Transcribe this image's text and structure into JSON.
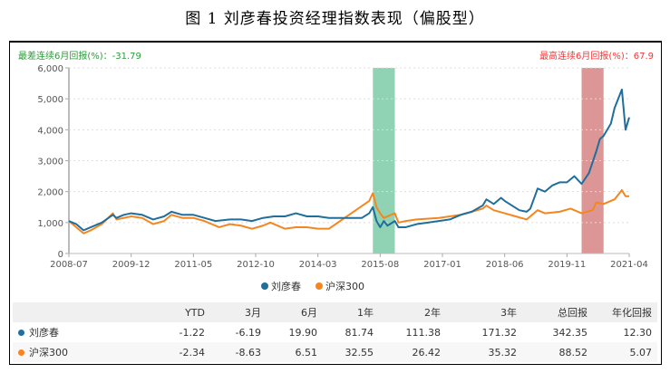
{
  "title": "图 1  刘彦春投资经理指数表现（偏股型）",
  "min_6m_label": "最差连续6月回报(%)：-31.79",
  "max_6m_label": "最高连续6月回报(%)：67.9",
  "chart_data": {
    "type": "line",
    "title": "",
    "ylim": [
      0,
      6000
    ],
    "yticks": [
      "0",
      "1,000",
      "2,000",
      "3,000",
      "4,000",
      "5,000",
      "6,000"
    ],
    "xticks": [
      "2008-07",
      "2009-12",
      "2011-05",
      "2012-10",
      "2014-03",
      "2015-08",
      "2017-01",
      "2018-06",
      "2019-11",
      "2021-04"
    ],
    "grid": "horizontal dotted",
    "legend": "bottom",
    "highlight_bands": [
      {
        "kind": "worst 6m",
        "from": "2015-06",
        "to": "2015-12",
        "color": "#8fd3b4"
      },
      {
        "kind": "best 6m",
        "from": "2020-03",
        "to": "2020-09",
        "color": "#dd9696"
      }
    ],
    "series": [
      {
        "name": "刘彦春",
        "color": "#1f6e9c",
        "points": [
          [
            "2008-07",
            1050
          ],
          [
            "2008-09",
            950
          ],
          [
            "2008-11",
            750
          ],
          [
            "2009-01",
            850
          ],
          [
            "2009-04",
            1000
          ],
          [
            "2009-07",
            1250
          ],
          [
            "2009-08",
            1150
          ],
          [
            "2009-10",
            1250
          ],
          [
            "2009-12",
            1300
          ],
          [
            "2010-03",
            1250
          ],
          [
            "2010-06",
            1100
          ],
          [
            "2010-09",
            1200
          ],
          [
            "2010-11",
            1350
          ],
          [
            "2011-02",
            1250
          ],
          [
            "2011-05",
            1250
          ],
          [
            "2011-08",
            1150
          ],
          [
            "2011-11",
            1050
          ],
          [
            "2012-03",
            1100
          ],
          [
            "2012-06",
            1100
          ],
          [
            "2012-09",
            1050
          ],
          [
            "2012-12",
            1150
          ],
          [
            "2013-03",
            1200
          ],
          [
            "2013-06",
            1200
          ],
          [
            "2013-09",
            1300
          ],
          [
            "2013-12",
            1200
          ],
          [
            "2014-03",
            1200
          ],
          [
            "2014-06",
            1150
          ],
          [
            "2015-03",
            1150
          ],
          [
            "2015-05",
            1300
          ],
          [
            "2015-06",
            1500
          ],
          [
            "2015-07",
            1050
          ],
          [
            "2015-08",
            850
          ],
          [
            "2015-09",
            1050
          ],
          [
            "2015-10",
            900
          ],
          [
            "2015-12",
            1050
          ],
          [
            "2016-01",
            850
          ],
          [
            "2016-03",
            850
          ],
          [
            "2016-06",
            950
          ],
          [
            "2016-09",
            1000
          ],
          [
            "2016-12",
            1050
          ],
          [
            "2017-03",
            1100
          ],
          [
            "2017-06",
            1250
          ],
          [
            "2017-09",
            1350
          ],
          [
            "2017-12",
            1550
          ],
          [
            "2018-01",
            1750
          ],
          [
            "2018-03",
            1600
          ],
          [
            "2018-05",
            1800
          ],
          [
            "2018-06",
            1700
          ],
          [
            "2018-08",
            1550
          ],
          [
            "2018-10",
            1400
          ],
          [
            "2018-12",
            1350
          ],
          [
            "2019-01",
            1450
          ],
          [
            "2019-03",
            2100
          ],
          [
            "2019-05",
            2000
          ],
          [
            "2019-07",
            2200
          ],
          [
            "2019-09",
            2300
          ],
          [
            "2019-11",
            2300
          ],
          [
            "2020-01",
            2500
          ],
          [
            "2020-03",
            2250
          ],
          [
            "2020-05",
            2600
          ],
          [
            "2020-07",
            3300
          ],
          [
            "2020-08",
            3700
          ],
          [
            "2020-09",
            3800
          ],
          [
            "2020-11",
            4200
          ],
          [
            "2020-12",
            4700
          ],
          [
            "2021-02",
            5300
          ],
          [
            "2021-03",
            4000
          ],
          [
            "2021-04",
            4400
          ]
        ]
      },
      {
        "name": "沪深300",
        "color": "#f5861f",
        "points": [
          [
            "2008-07",
            1050
          ],
          [
            "2008-11",
            650
          ],
          [
            "2009-01",
            750
          ],
          [
            "2009-04",
            950
          ],
          [
            "2009-07",
            1300
          ],
          [
            "2009-08",
            1100
          ],
          [
            "2009-12",
            1200
          ],
          [
            "2010-03",
            1150
          ],
          [
            "2010-06",
            950
          ],
          [
            "2010-09",
            1050
          ],
          [
            "2010-11",
            1250
          ],
          [
            "2011-02",
            1150
          ],
          [
            "2011-05",
            1150
          ],
          [
            "2011-08",
            1050
          ],
          [
            "2011-12",
            850
          ],
          [
            "2012-03",
            950
          ],
          [
            "2012-06",
            900
          ],
          [
            "2012-09",
            800
          ],
          [
            "2012-12",
            900
          ],
          [
            "2013-02",
            1000
          ],
          [
            "2013-06",
            800
          ],
          [
            "2013-09",
            850
          ],
          [
            "2013-12",
            850
          ],
          [
            "2014-03",
            800
          ],
          [
            "2014-06",
            800
          ],
          [
            "2015-05",
            1700
          ],
          [
            "2015-06",
            1950
          ],
          [
            "2015-07",
            1500
          ],
          [
            "2015-08",
            1300
          ],
          [
            "2015-09",
            1150
          ],
          [
            "2015-12",
            1300
          ],
          [
            "2016-01",
            1000
          ],
          [
            "2016-03",
            1050
          ],
          [
            "2016-06",
            1100
          ],
          [
            "2016-12",
            1150
          ],
          [
            "2017-03",
            1200
          ],
          [
            "2017-06",
            1250
          ],
          [
            "2017-09",
            1350
          ],
          [
            "2017-12",
            1450
          ],
          [
            "2018-01",
            1550
          ],
          [
            "2018-03",
            1400
          ],
          [
            "2018-06",
            1300
          ],
          [
            "2018-09",
            1200
          ],
          [
            "2018-12",
            1100
          ],
          [
            "2019-03",
            1400
          ],
          [
            "2019-05",
            1300
          ],
          [
            "2019-09",
            1350
          ],
          [
            "2019-12",
            1450
          ],
          [
            "2020-03",
            1300
          ],
          [
            "2020-06",
            1400
          ],
          [
            "2020-07",
            1650
          ],
          [
            "2020-09",
            1600
          ],
          [
            "2020-12",
            1750
          ],
          [
            "2021-02",
            2050
          ],
          [
            "2021-03",
            1850
          ],
          [
            "2021-04",
            1850
          ]
        ]
      }
    ]
  },
  "table": {
    "headers": [
      "",
      "YTD",
      "3月",
      "6月",
      "1年",
      "2年",
      "3年",
      "总回报",
      "年化回报"
    ],
    "rows": [
      {
        "name": "刘彦春",
        "color": "#1f6e9c",
        "values": [
          "-1.22",
          "-6.19",
          "19.90",
          "81.74",
          "111.38",
          "171.32",
          "342.35",
          "12.30"
        ]
      },
      {
        "name": "沪深300",
        "color": "#f5861f",
        "values": [
          "-2.34",
          "-8.63",
          "6.51",
          "32.55",
          "26.42",
          "35.32",
          "88.52",
          "5.07"
        ]
      }
    ]
  }
}
